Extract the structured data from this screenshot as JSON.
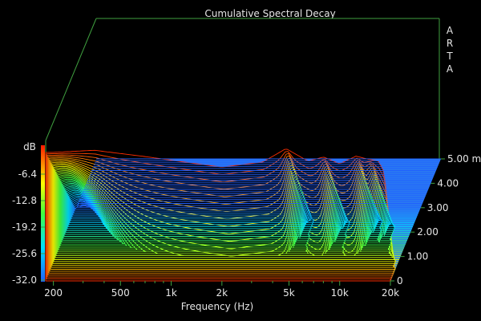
{
  "chart_data": {
    "type": "waterfall",
    "title": "Cumulative Spectral Decay",
    "watermark": "ARTA",
    "xlabel": "Frequency (Hz)",
    "x_scale": "log",
    "xlim": [
      180,
      20000
    ],
    "x_ticks": [
      {
        "value": 200,
        "label": "200"
      },
      {
        "value": 500,
        "label": "500"
      },
      {
        "value": 1000,
        "label": "1k"
      },
      {
        "value": 2000,
        "label": "2k"
      },
      {
        "value": 5000,
        "label": "5k"
      },
      {
        "value": 10000,
        "label": "10k"
      },
      {
        "value": 20000,
        "label": "20k"
      }
    ],
    "colorbar": {
      "unit": "dB",
      "range": [
        -32.0,
        0
      ],
      "ticks": [
        "-6.4",
        "-12.8",
        "-19.2",
        "-25.6",
        "-32.0"
      ]
    },
    "time_axis": {
      "unit": "ms",
      "range": [
        0,
        5.0
      ],
      "ticks": [
        "0",
        "1.00",
        "2.00",
        "3.00",
        "4.00",
        "5.00 ms"
      ]
    },
    "floor_color": "#2a7bf0",
    "grid_color": "#3f9f3f",
    "initial_response_db": [
      {
        "f": 200,
        "db": -1.5
      },
      {
        "f": 350,
        "db": -1.0
      },
      {
        "f": 700,
        "db": -2.5
      },
      {
        "f": 1200,
        "db": -3.8
      },
      {
        "f": 2000,
        "db": -5.0
      },
      {
        "f": 3500,
        "db": -3.8
      },
      {
        "f": 4800,
        "db": -0.6
      },
      {
        "f": 6500,
        "db": -3.6
      },
      {
        "f": 8000,
        "db": -2.6
      },
      {
        "f": 10000,
        "db": -4.2
      },
      {
        "f": 12500,
        "db": -2.4
      },
      {
        "f": 15000,
        "db": -3.2
      },
      {
        "f": 17000,
        "db": -3.6
      },
      {
        "f": 18500,
        "db": -6.5
      },
      {
        "f": 20000,
        "db": -25.0
      }
    ]
  }
}
